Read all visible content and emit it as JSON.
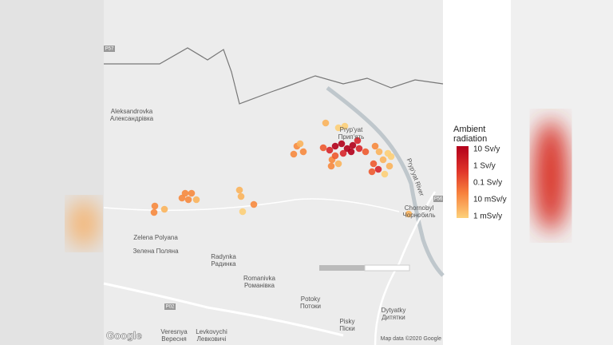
{
  "map": {
    "places": [
      {
        "name": "Aleksandrovka",
        "local": "Александрівка"
      },
      {
        "name": "Pryp'yat",
        "local": "Прип'ять"
      },
      {
        "name": "Chornobyl",
        "local": "Чорнобиль"
      },
      {
        "name": "Zelena Polyana",
        "local": "Зелена Поляна"
      },
      {
        "name": "Radynka",
        "local": "Радинка"
      },
      {
        "name": "Romanivka",
        "local": "Романівка"
      },
      {
        "name": "Potoky",
        "local": "Потоки"
      },
      {
        "name": "Pisky",
        "local": "Піски"
      },
      {
        "name": "Dytyatky",
        "local": "Дитятки"
      },
      {
        "name": "Levkovychi",
        "local": "Левковичі"
      },
      {
        "name": "Veresnya",
        "local": "Вересня"
      }
    ],
    "river": "Pryp'yat River",
    "roads": [
      "P57",
      "P56",
      "P02"
    ],
    "attribution": "Map data ©2020 Google",
    "logo": "Google"
  },
  "legend": {
    "title": "Ambient radiation",
    "labels": [
      "10 Sv/y",
      "1 Sv/y",
      "0.1 Sv/y",
      "10 mSv/y",
      "1 mSv/y"
    ]
  }
}
